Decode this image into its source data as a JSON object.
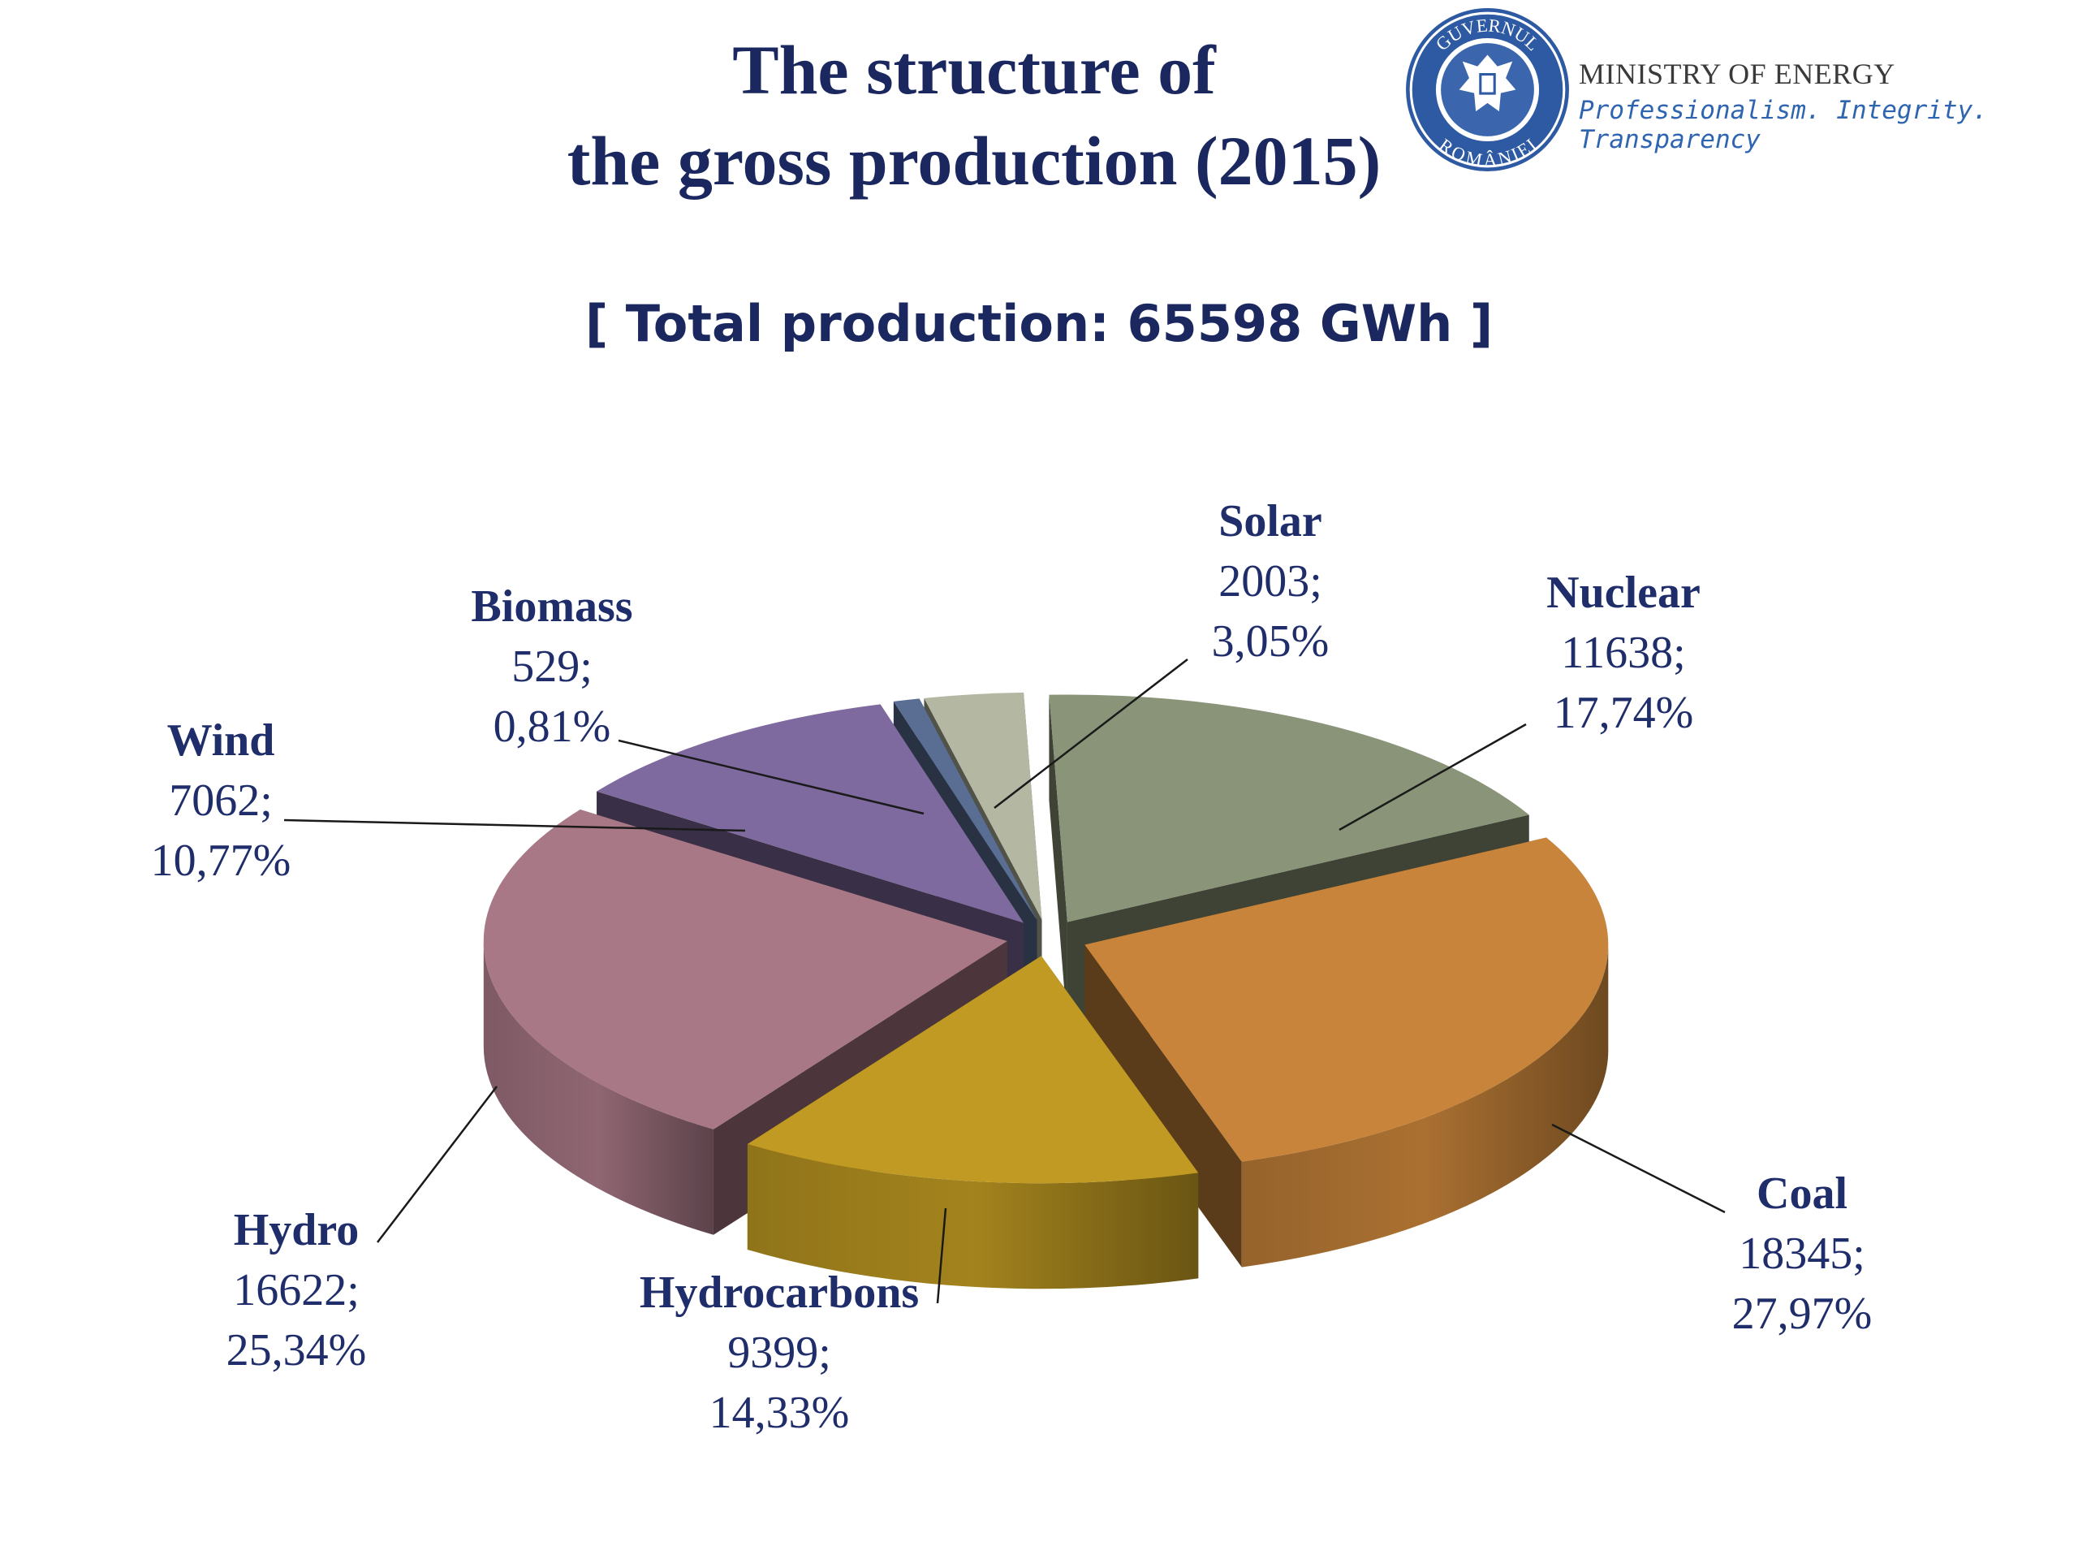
{
  "title": {
    "line1": "The structure of",
    "line2": "the gross production (2015)"
  },
  "subtitle": "[ Total production: 65598 GWh ]",
  "ministry": {
    "logo_icon": "government-of-romania-seal",
    "logo_text": "GUVERNUL ROMÂNIEI",
    "name": "MINISTRY OF ENERGY",
    "slogan": "Professionalism. Integrity. Transparency"
  },
  "chart_data": {
    "type": "pie",
    "style": "3d-exploded",
    "legend": "none",
    "slices": [
      {
        "name": "Nuclear",
        "value": 11638,
        "value_label": "11638;",
        "percent": 17.74,
        "percent_label": "17,74%",
        "color": "#8a9478"
      },
      {
        "name": "Coal",
        "value": 18345,
        "value_label": "18345;",
        "percent": 27.97,
        "percent_label": "27,97%",
        "color": "#c8843a"
      },
      {
        "name": "Hydrocarbons",
        "value": 9399,
        "value_label": "9399;",
        "percent": 14.33,
        "percent_label": "14,33%",
        "color": "#c09a22"
      },
      {
        "name": "Hydro",
        "value": 16622,
        "value_label": "16622;",
        "percent": 25.34,
        "percent_label": "25,34%",
        "color": "#a87886"
      },
      {
        "name": "Wind",
        "value": 7062,
        "value_label": "7062;",
        "percent": 10.77,
        "percent_label": "10,77%",
        "color": "#7e6a9e"
      },
      {
        "name": "Biomass",
        "value": 529,
        "value_label": "529;",
        "percent": 0.81,
        "percent_label": "0,81%",
        "color": "#5a6e94"
      },
      {
        "name": "Solar",
        "value": 2003,
        "value_label": "2003;",
        "percent": 3.05,
        "percent_label": "3,05%",
        "color": "#b4b8a2"
      }
    ]
  }
}
